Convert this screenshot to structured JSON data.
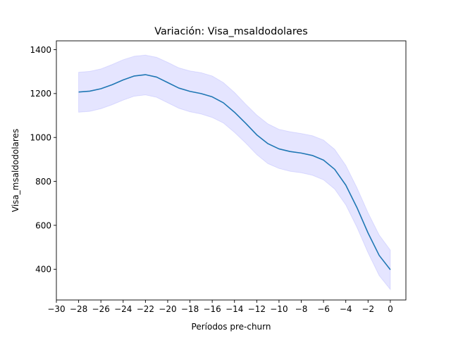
{
  "chart_data": {
    "type": "line",
    "title": "Variación: Visa_msaldodolares",
    "xlabel": "Períodos pre-churn",
    "ylabel": "Visa_msaldodolares",
    "xlim": [
      -30,
      1.4
    ],
    "ylim": [
      260,
      1440
    ],
    "xticks": [
      -30,
      -28,
      -26,
      -24,
      -22,
      -20,
      -18,
      -16,
      -14,
      -12,
      -10,
      -8,
      -6,
      -4,
      -2,
      0
    ],
    "xtick_labels": [
      "−30",
      "−28",
      "−26",
      "−24",
      "−22",
      "−20",
      "−18",
      "−16",
      "−14",
      "−12",
      "−10",
      "−8",
      "−6",
      "−4",
      "−2",
      "0"
    ],
    "yticks": [
      400,
      600,
      800,
      1000,
      1200,
      1400
    ],
    "ytick_labels": [
      "400",
      "600",
      "800",
      "1000",
      "1200",
      "1400"
    ],
    "grid": false,
    "legend": "none",
    "line_color": "#1f77b4",
    "band_color": "#0000ff",
    "series": [
      {
        "x": [
          -28,
          -27,
          -26,
          -25,
          -24,
          -23,
          -22,
          -21,
          -20,
          -19,
          -18,
          -17,
          -16,
          -15,
          -14,
          -13,
          -12,
          -11,
          -10,
          -9,
          -8,
          -7,
          -6,
          -5,
          -4,
          -3,
          -2,
          -1,
          0
        ],
        "values": [
          1207,
          1211,
          1222,
          1240,
          1262,
          1280,
          1286,
          1275,
          1250,
          1225,
          1210,
          1200,
          1185,
          1158,
          1115,
          1065,
          1012,
          972,
          948,
          936,
          929,
          918,
          897,
          855,
          783,
          681,
          565,
          463,
          398
        ],
        "upper": [
          1297,
          1301,
          1312,
          1332,
          1354,
          1370,
          1375,
          1365,
          1342,
          1317,
          1303,
          1295,
          1280,
          1250,
          1205,
          1152,
          1102,
          1062,
          1037,
          1026,
          1018,
          1008,
          988,
          946,
          873,
          771,
          657,
          556,
          487
        ],
        "lower": [
          1115,
          1119,
          1131,
          1149,
          1170,
          1188,
          1194,
          1183,
          1158,
          1133,
          1117,
          1107,
          1091,
          1066,
          1023,
          975,
          922,
          881,
          859,
          846,
          839,
          828,
          807,
          765,
          693,
          591,
          475,
          371,
          308
        ]
      }
    ]
  }
}
